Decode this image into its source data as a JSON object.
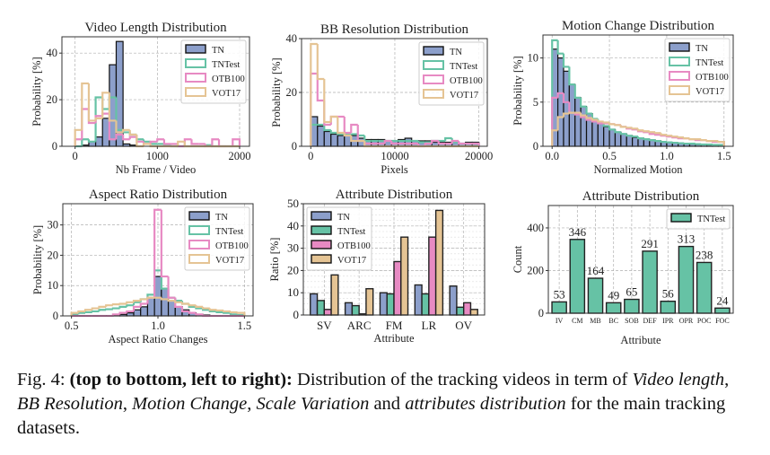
{
  "colors": {
    "TN": "#8c9fcb",
    "TNTest": "#66c2a5",
    "OTB100": "#e78ac3",
    "VOT17": "#e5c494",
    "edge": "#111111",
    "grid": "#b0b0b0"
  },
  "chart_data": [
    {
      "type": "histogram",
      "title": "Video Length Distribution",
      "xlabel": "Nb Frame / Video",
      "ylabel": "Probability [%]",
      "xlim": [
        -160,
        2120
      ],
      "ylim": [
        0,
        47
      ],
      "xticks": [
        0,
        1000,
        2000
      ],
      "yticks": [
        0,
        20,
        40
      ],
      "grid": true,
      "legend": "top-right",
      "bin_start": 0,
      "bin_width": 83.3,
      "series": [
        {
          "name": "TN",
          "style": "filled",
          "values": [
            0,
            0.5,
            2,
            4,
            12,
            35,
            45,
            1,
            0.5,
            0,
            0,
            0,
            0,
            0,
            0,
            0,
            0,
            0,
            0,
            0,
            0,
            0,
            0,
            0
          ]
        },
        {
          "name": "TNTest",
          "style": "step",
          "values": [
            0,
            3,
            2,
            21,
            16,
            21,
            7,
            6,
            5,
            3,
            2,
            1,
            1,
            0.5,
            0,
            0,
            0,
            0,
            0,
            0.5,
            0,
            0,
            0,
            0
          ]
        },
        {
          "name": "OTB100",
          "style": "step",
          "values": [
            3,
            16,
            10,
            13,
            14,
            3,
            5,
            3,
            4,
            2,
            1,
            2,
            3,
            1,
            1,
            0,
            3,
            1,
            1,
            0,
            3,
            0,
            0,
            3
          ]
        },
        {
          "name": "VOT17",
          "style": "step",
          "values": [
            7,
            27,
            11,
            12,
            23,
            11,
            6,
            7,
            5,
            0,
            1,
            0,
            0,
            0,
            0,
            2,
            0,
            0,
            0,
            0,
            0,
            0,
            0,
            0
          ]
        }
      ]
    },
    {
      "type": "histogram",
      "title": "BB Resolution Distribution",
      "xlabel": "Pixels",
      "ylabel": "Probability [%]",
      "xlim": [
        -1100,
        21000
      ],
      "ylim": [
        0,
        40
      ],
      "xticks": [
        0,
        10000,
        20000
      ],
      "yticks": [
        0,
        20,
        40
      ],
      "grid": true,
      "legend": "top-right",
      "bin_start": 0,
      "bin_width": 800,
      "series": [
        {
          "name": "TN",
          "style": "filled",
          "values": [
            11,
            7.5,
            5.5,
            4.5,
            4,
            4,
            4,
            3,
            2.5,
            2.5,
            2.5,
            2,
            2,
            2.5,
            3,
            2,
            2,
            2,
            1.5,
            1.5,
            1.5,
            1.5,
            1,
            1.5,
            1.5
          ]
        },
        {
          "name": "TNTest",
          "style": "step",
          "values": [
            8,
            8,
            6,
            5,
            4.5,
            4.5,
            4.5,
            4,
            2,
            2,
            2,
            2,
            2,
            2,
            2,
            2,
            1.5,
            1.5,
            2,
            2,
            3,
            1.5,
            1,
            1,
            1
          ]
        },
        {
          "name": "OTB100",
          "style": "step",
          "values": [
            27,
            17,
            8,
            11,
            11,
            5,
            8,
            2,
            1,
            1,
            1,
            2,
            1,
            1,
            1,
            1,
            0,
            1,
            2,
            1,
            1,
            2,
            1,
            1,
            1
          ]
        },
        {
          "name": "VOT17",
          "style": "step",
          "values": [
            38,
            25,
            9,
            11,
            5,
            4,
            2,
            2,
            0,
            0,
            0,
            0,
            0,
            0,
            0,
            0,
            0,
            0,
            0,
            0,
            0,
            0,
            0,
            0,
            0
          ]
        }
      ]
    },
    {
      "type": "histogram",
      "title": "Motion Change Distribution",
      "xlabel": "Normalized Motion",
      "ylabel": "Probability [%]",
      "xlim": [
        -0.08,
        1.58
      ],
      "ylim": [
        0,
        12.6
      ],
      "xticks": [
        0.0,
        0.5,
        1.0,
        1.5
      ],
      "yticks": [
        0,
        5,
        10
      ],
      "xtick_labels": [
        "0.0",
        "0.5",
        "1.0",
        "1.5"
      ],
      "grid": true,
      "legend": "top-right",
      "bin_start": 0,
      "bin_width": 0.05,
      "series": [
        {
          "name": "TN",
          "style": "filled",
          "values": [
            11,
            10,
            8.5,
            7,
            5.5,
            4.5,
            3.7,
            3,
            2.6,
            2.2,
            1.9,
            1.6,
            1.4,
            1.2,
            1,
            0.9,
            0.8,
            0.7,
            0.6,
            0.5,
            0.45,
            0.4,
            0.35,
            0.3,
            0.25,
            0.2,
            0.2,
            0.15,
            0.1,
            0.1
          ]
        },
        {
          "name": "TNTest",
          "style": "step",
          "values": [
            12,
            10.5,
            9,
            7,
            5.5,
            4.5,
            3.7,
            3.1,
            2.7,
            2.3,
            1.9,
            1.6,
            1.4,
            1.2,
            1.1,
            0.9,
            0.8,
            0.7,
            0.6,
            0.5,
            0.45,
            0.4,
            0.35,
            0.3,
            0.3,
            0.25,
            0.2,
            0.2,
            0.15,
            0.15
          ]
        },
        {
          "name": "OTB100",
          "style": "step",
          "values": [
            5.5,
            6,
            5,
            3.8,
            3.6,
            3.3,
            3,
            2.8,
            2.6,
            2.6,
            2.5,
            2.4,
            2.2,
            2,
            1.9,
            1.7,
            1.6,
            1.4,
            1.3,
            1.2,
            1.1,
            1,
            0.9,
            0.9,
            0.8,
            0.7,
            0.7,
            0.6,
            0.5,
            0.5
          ]
        },
        {
          "name": "VOT17",
          "style": "step",
          "values": [
            1.8,
            3.3,
            3.7,
            3.8,
            3.8,
            3.5,
            3.2,
            3,
            2.8,
            2.7,
            2.5,
            2.4,
            2.2,
            2.1,
            2,
            1.8,
            1.7,
            1.6,
            1.5,
            1.3,
            1.2,
            1.1,
            1,
            0.9,
            0.8,
            0.8,
            0.7,
            0.6,
            0.6,
            0.5
          ]
        }
      ]
    },
    {
      "type": "histogram",
      "title": "Aspect Ratio Distribution",
      "xlabel": "Aspect Ratio Changes",
      "ylabel": "Probability [%]",
      "xlim": [
        0.45,
        1.55
      ],
      "ylim": [
        0,
        37
      ],
      "xticks": [
        0.5,
        1.0,
        1.5
      ],
      "yticks": [
        0,
        10,
        20,
        30
      ],
      "xtick_labels": [
        "0.5",
        "1.0",
        "1.5"
      ],
      "grid": true,
      "legend": "top-right",
      "bin_start": 0.5,
      "bin_width": 0.04,
      "series": [
        {
          "name": "TN",
          "style": "filled",
          "values": [
            0,
            0,
            0,
            0,
            0,
            0.1,
            0.3,
            0.5,
            1,
            2,
            3,
            6,
            13,
            9,
            5,
            3,
            2,
            1,
            0.5,
            0.3,
            0.1,
            0,
            0,
            0,
            0
          ]
        },
        {
          "name": "TNTest",
          "style": "step",
          "values": [
            0.5,
            1,
            1.2,
            1.5,
            2,
            2.2,
            2.5,
            3,
            3.5,
            4.5,
            5.5,
            7,
            15,
            9,
            6,
            5,
            4,
            3,
            2.5,
            2,
            1.5,
            1.2,
            1,
            0.5,
            0.3
          ]
        },
        {
          "name": "OTB100",
          "style": "step",
          "values": [
            0,
            0,
            0,
            0,
            0,
            0,
            0.5,
            1,
            1.5,
            3,
            4,
            6,
            35,
            13,
            6,
            3,
            1.5,
            1,
            0.5,
            0,
            0,
            0,
            0,
            0,
            0
          ]
        },
        {
          "name": "VOT17",
          "style": "step",
          "values": [
            1,
            1.5,
            2,
            2.5,
            3,
            3.5,
            3.8,
            4,
            4.5,
            5,
            5.5,
            6,
            6,
            5.5,
            5,
            4.5,
            4,
            3.5,
            3,
            2.5,
            2,
            1.8,
            1.5,
            1.2,
            1
          ]
        }
      ]
    },
    {
      "type": "bar",
      "title": "Attribute Distribution",
      "xlabel": "Attribute",
      "ylabel": "Ratio [%]",
      "ylim": [
        0,
        50
      ],
      "yticks": [
        0,
        10,
        20,
        30,
        40,
        50
      ],
      "grid": true,
      "legend": "top-left",
      "categories": [
        "SV",
        "ARC",
        "FM",
        "LR",
        "OV"
      ],
      "series": [
        {
          "name": "TN",
          "values": [
            9.5,
            5.5,
            10,
            13.5,
            13
          ]
        },
        {
          "name": "TNTest",
          "values": [
            6.5,
            4.2,
            9.5,
            9.5,
            3.5
          ]
        },
        {
          "name": "OTB100",
          "values": [
            2.5,
            0.5,
            24,
            35,
            5.5
          ]
        },
        {
          "name": "VOT17",
          "values": [
            18,
            11.8,
            35,
            47,
            2.5
          ]
        }
      ]
    },
    {
      "type": "bar",
      "title": "Attribute Distribution",
      "xlabel": "Attribute",
      "ylabel": "Count",
      "ylim": [
        0,
        505
      ],
      "yticks": [
        0,
        200,
        400
      ],
      "grid": true,
      "legend": "top-right",
      "categories": [
        "IV",
        "CM",
        "MB",
        "BC",
        "SOB",
        "DEF",
        "IPR",
        "OPR",
        "POC",
        "FOC"
      ],
      "series": [
        {
          "name": "TNTest",
          "values": [
            53,
            346,
            164,
            49,
            65,
            291,
            56,
            313,
            238,
            24
          ]
        }
      ],
      "data_labels": [
        "53",
        "346",
        "164",
        "49",
        "65",
        "291",
        "56",
        "313",
        "238",
        "24"
      ]
    }
  ],
  "caption": {
    "label": "Fig. 4:",
    "bold": "(top to bottom, left to right):",
    "t1": "Distribution of the tracking videos in term of",
    "i1": "Video length",
    "t2": ",",
    "i2": "BB Resolution",
    "t3": ",",
    "i3": "Motion Change",
    "t4": ",",
    "i4": "Scale Variation",
    "t5": "and",
    "i5": "attributes distribution",
    "t6": "for the main tracking datasets."
  }
}
